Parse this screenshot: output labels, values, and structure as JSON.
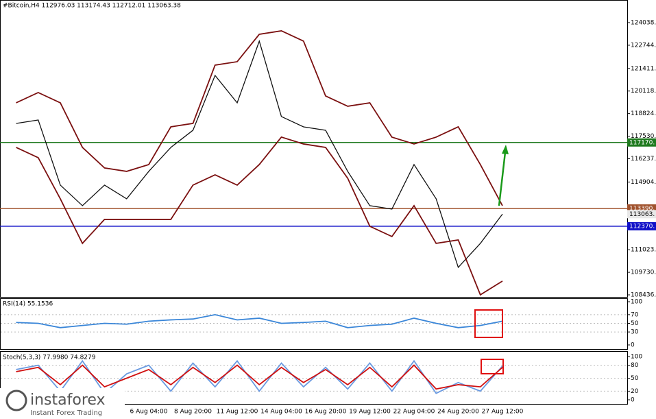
{
  "chart_data": [
    {
      "type": "line",
      "title": "#Bitcoin,H4  112976.03 113174.43 112712.01 113063.38",
      "categories": [
        null,
        null,
        null,
        null,
        null,
        null,
        "6 Aug 04:00",
        null,
        "8 Aug 20:00",
        null,
        "11 Aug 12:00",
        null,
        "14 Aug 04:00",
        null,
        "16 Aug 20:00",
        null,
        "19 Aug 12:00",
        null,
        "22 Aug 04:00",
        null,
        "24 Aug 20:00",
        null,
        "27 Aug 12:00"
      ],
      "series": [
        {
          "color": "#111111",
          "values": [
            118262,
            118459,
            114727,
            113548,
            114727,
            113941,
            115513,
            116888,
            117870,
            121013,
            119441,
            122978,
            118656,
            118066,
            117870,
            115513,
            113548,
            113352,
            115905,
            113941,
            110012,
            111387,
            113063
          ]
        },
        {
          "color": "#7b1010",
          "values": [
            119442,
            120031,
            119442,
            116888,
            115709,
            115513,
            115905,
            118066,
            118263,
            121602,
            121799,
            123370,
            123567,
            122978,
            119834,
            119245,
            119442,
            117477,
            117084,
            117477,
            118066,
            115905,
            113548
          ]
        },
        {
          "color": "#7b1010",
          "values": [
            116888,
            116298,
            113941,
            111387,
            112762,
            112762,
            112762,
            112762,
            114727,
            115316,
            114727,
            115905,
            117477,
            117084,
            116888,
            115120,
            112369,
            111780,
            113548,
            111387,
            111584,
            108440,
            109226
          ]
        }
      ],
      "levels": [
        {
          "value": 117170,
          "label": "117170.",
          "color": "#1f7a1f"
        },
        {
          "value": 113390,
          "label": "113390.",
          "color": "#a0522d"
        },
        {
          "value": 112370,
          "label": "112370.",
          "color": "#1010c8"
        }
      ],
      "last_price": {
        "value": 113063,
        "label": "113063."
      },
      "ylim": [
        108318,
        125335
      ],
      "yticks": [
        {
          "value": 124038,
          "label": "124038."
        },
        {
          "value": 122744,
          "label": "122744."
        },
        {
          "value": 121411,
          "label": "121411."
        },
        {
          "value": 120118,
          "label": "120118."
        },
        {
          "value": 118824,
          "label": "118824."
        },
        {
          "value": 117530,
          "label": "117530."
        },
        {
          "value": 116237,
          "label": "116237."
        },
        {
          "value": 114904,
          "label": "114904."
        },
        {
          "value": 111023,
          "label": "111023."
        },
        {
          "value": 109730,
          "label": "109730."
        },
        {
          "value": 108436,
          "label": "108436."
        }
      ]
    },
    {
      "type": "line",
      "title": "RSI(14) 55.1536",
      "series": [
        {
          "color": "#3a86d8",
          "values": [
            52,
            50,
            40,
            45,
            50,
            48,
            55,
            58,
            60,
            70,
            58,
            62,
            50,
            52,
            55,
            40,
            45,
            48,
            62,
            50,
            40,
            45,
            55
          ]
        }
      ],
      "ylim": [
        0,
        100
      ],
      "yticks": [
        0,
        30,
        50,
        70,
        100
      ]
    },
    {
      "type": "line",
      "title": "Stoch(5,3,3) 77.9980 74.8279",
      "series": [
        {
          "color": "#6a9ae0",
          "values": [
            70,
            80,
            20,
            90,
            15,
            60,
            80,
            20,
            85,
            30,
            90,
            20,
            85,
            30,
            75,
            25,
            85,
            20,
            90,
            15,
            40,
            20,
            78
          ]
        },
        {
          "color": "#d01010",
          "values": [
            65,
            75,
            35,
            80,
            30,
            50,
            70,
            35,
            75,
            40,
            80,
            35,
            75,
            40,
            70,
            35,
            75,
            30,
            80,
            25,
            35,
            30,
            75
          ]
        }
      ],
      "ylim": [
        0,
        100
      ],
      "yticks": [
        0,
        20,
        50,
        80,
        100
      ]
    }
  ],
  "watermark": {
    "name": "instaforex",
    "tagline": "Instant Forex Trading"
  }
}
